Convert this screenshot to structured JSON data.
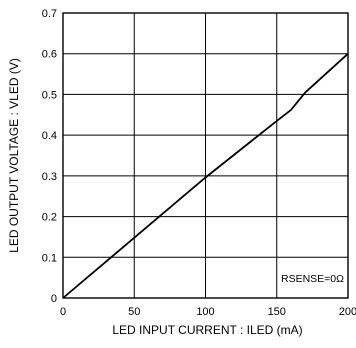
{
  "chart_data": {
    "type": "line",
    "title": "",
    "xlabel": "LED INPUT CURRENT : ILED (mA)",
    "ylabel": "LED OUTPUT VOLTAGE : VLED (V)",
    "xlim": [
      0,
      200
    ],
    "ylim": [
      0,
      0.7
    ],
    "xticks": [
      0,
      50,
      100,
      150,
      200
    ],
    "xtick_labels": [
      "0",
      "50",
      "100",
      "150",
      "200"
    ],
    "yticks": [
      0,
      0.1,
      0.2,
      0.3,
      0.4,
      0.5,
      0.6,
      0.7
    ],
    "ytick_labels": [
      "0",
      "0.1",
      "0.2",
      "0.3",
      "0.4",
      "0.5",
      "0.6",
      "0.7"
    ],
    "grid": true,
    "line_color": "#000000",
    "annotation": "RSENSE=0Ω",
    "series": [
      {
        "x": [
          0,
          50,
          100,
          150,
          160,
          170,
          200
        ],
        "y": [
          0,
          0.148,
          0.296,
          0.435,
          0.462,
          0.505,
          0.6
        ]
      }
    ]
  }
}
